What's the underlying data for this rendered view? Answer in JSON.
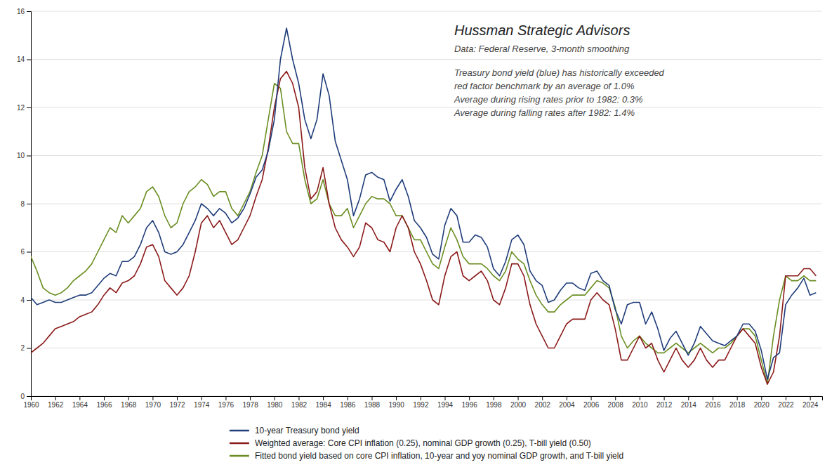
{
  "chart_data": {
    "type": "line",
    "title": "Hussman Strategic Advisors",
    "subtitle": "Data: Federal Reserve, 3-month smoothing",
    "annotations": [
      "Treasury bond yield (blue) has historically exceeded",
      "red factor benchmark by an average of 1.0%",
      "Average during rising rates prior to 1982: 0.3%",
      "Average during falling rates after 1982: 1.4%"
    ],
    "x": [
      1960.0,
      1960.5,
      1961.0,
      1961.5,
      1962.0,
      1962.5,
      1963.0,
      1963.5,
      1964.0,
      1964.5,
      1965.0,
      1965.5,
      1966.0,
      1966.5,
      1967.0,
      1967.5,
      1968.0,
      1968.5,
      1969.0,
      1969.5,
      1970.0,
      1970.5,
      1971.0,
      1971.5,
      1972.0,
      1972.5,
      1973.0,
      1973.5,
      1974.0,
      1974.5,
      1975.0,
      1975.5,
      1976.0,
      1976.5,
      1977.0,
      1977.5,
      1978.0,
      1978.5,
      1979.0,
      1979.5,
      1980.0,
      1980.5,
      1981.0,
      1981.5,
      1982.0,
      1982.5,
      1983.0,
      1983.5,
      1984.0,
      1984.5,
      1985.0,
      1985.5,
      1986.0,
      1986.5,
      1987.0,
      1987.5,
      1988.0,
      1988.5,
      1989.0,
      1989.5,
      1990.0,
      1990.5,
      1991.0,
      1991.5,
      1992.0,
      1992.5,
      1993.0,
      1993.5,
      1994.0,
      1994.5,
      1995.0,
      1995.5,
      1996.0,
      1996.5,
      1997.0,
      1997.5,
      1998.0,
      1998.5,
      1999.0,
      1999.5,
      2000.0,
      2000.5,
      2001.0,
      2001.5,
      2002.0,
      2002.5,
      2003.0,
      2003.5,
      2004.0,
      2004.5,
      2005.0,
      2005.5,
      2006.0,
      2006.5,
      2007.0,
      2007.5,
      2008.0,
      2008.5,
      2009.0,
      2009.5,
      2010.0,
      2010.5,
      2011.0,
      2011.5,
      2012.0,
      2012.5,
      2013.0,
      2013.5,
      2014.0,
      2014.5,
      2015.0,
      2015.5,
      2016.0,
      2016.5,
      2017.0,
      2017.5,
      2018.0,
      2018.5,
      2019.0,
      2019.5,
      2020.0,
      2020.5,
      2021.0,
      2021.5,
      2022.0,
      2022.5,
      2023.0,
      2023.5,
      2024.0,
      2024.5
    ],
    "series": [
      {
        "name": "10-year Treasury bond yield",
        "color": "#1f3d7a",
        "values": [
          4.1,
          3.8,
          3.9,
          4.0,
          3.9,
          3.9,
          4.0,
          4.1,
          4.2,
          4.2,
          4.3,
          4.6,
          4.9,
          5.1,
          5.0,
          5.6,
          5.6,
          5.8,
          6.3,
          7.0,
          7.3,
          6.8,
          6.0,
          5.9,
          6.0,
          6.3,
          6.8,
          7.3,
          8.0,
          7.8,
          7.5,
          7.8,
          7.6,
          7.2,
          7.4,
          7.8,
          8.4,
          9.1,
          9.4,
          10.2,
          11.5,
          14.0,
          15.3,
          14.0,
          13.0,
          11.5,
          10.7,
          11.5,
          13.4,
          12.5,
          10.6,
          9.8,
          9.0,
          7.5,
          8.2,
          9.2,
          9.3,
          9.1,
          9.0,
          8.1,
          8.6,
          9.0,
          8.3,
          7.3,
          7.0,
          6.6,
          5.9,
          5.7,
          7.1,
          7.8,
          7.5,
          6.4,
          6.4,
          6.7,
          6.6,
          6.2,
          5.3,
          5.0,
          5.6,
          6.5,
          6.7,
          6.3,
          5.2,
          4.8,
          4.6,
          3.9,
          4.0,
          4.4,
          4.7,
          4.7,
          4.5,
          4.4,
          5.1,
          5.2,
          4.8,
          4.6,
          3.6,
          3.0,
          3.8,
          3.9,
          3.9,
          3.0,
          3.5,
          2.8,
          1.9,
          2.4,
          2.7,
          2.2,
          1.7,
          2.2,
          2.9,
          2.6,
          2.3,
          2.2,
          2.1,
          2.3,
          2.5,
          3.0,
          3.0,
          2.7,
          1.9,
          0.7,
          1.6,
          1.8,
          3.8,
          4.2,
          4.5,
          4.9,
          4.2,
          4.3
        ]
      },
      {
        "name": "Weighted average: Core CPI inflation (0.25), nominal GDP growth (0.25), T-bill yield (0.50)",
        "color": "#8b1a1a",
        "values": [
          1.8,
          2.0,
          2.2,
          2.5,
          2.8,
          2.9,
          3.0,
          3.1,
          3.3,
          3.4,
          3.5,
          3.8,
          4.2,
          4.5,
          4.3,
          4.7,
          4.8,
          5.0,
          5.5,
          6.2,
          6.3,
          5.8,
          4.8,
          4.5,
          4.2,
          4.5,
          5.0,
          6.0,
          7.2,
          7.5,
          7.0,
          7.3,
          6.8,
          6.3,
          6.5,
          7.0,
          7.5,
          8.3,
          9.0,
          10.3,
          12.0,
          13.2,
          13.5,
          13.0,
          12.0,
          9.5,
          8.2,
          8.5,
          9.5,
          8.0,
          7.0,
          6.5,
          6.2,
          5.8,
          6.2,
          7.2,
          7.0,
          6.5,
          6.4,
          6.0,
          7.0,
          7.5,
          7.0,
          6.0,
          5.5,
          4.8,
          4.0,
          3.8,
          5.0,
          5.8,
          6.0,
          5.0,
          4.8,
          5.0,
          5.2,
          4.8,
          4.0,
          3.8,
          4.5,
          5.5,
          5.5,
          5.0,
          3.8,
          3.0,
          2.5,
          2.0,
          2.0,
          2.5,
          3.0,
          3.2,
          3.2,
          3.2,
          4.0,
          4.3,
          4.0,
          3.8,
          2.8,
          1.5,
          1.5,
          2.0,
          2.5,
          2.0,
          2.2,
          1.5,
          1.0,
          1.5,
          2.0,
          1.5,
          1.2,
          1.5,
          2.0,
          1.5,
          1.2,
          1.5,
          1.5,
          2.0,
          2.5,
          2.8,
          2.5,
          2.2,
          1.2,
          0.5,
          1.0,
          2.5,
          5.0,
          5.0,
          5.0,
          5.3,
          5.3,
          5.0
        ]
      },
      {
        "name": "Fitted bond yield based on core CPI inflation, 10-year and yoy nominal GDP growth, and T-bill yield",
        "color": "#6b8e23",
        "values": [
          5.8,
          5.2,
          4.5,
          4.3,
          4.2,
          4.3,
          4.5,
          4.8,
          5.0,
          5.2,
          5.5,
          6.0,
          6.5,
          7.0,
          6.8,
          7.5,
          7.2,
          7.5,
          7.8,
          8.5,
          8.7,
          8.3,
          7.5,
          7.0,
          7.2,
          8.0,
          8.5,
          8.7,
          9.0,
          8.8,
          8.3,
          8.5,
          8.5,
          7.8,
          7.5,
          8.0,
          8.5,
          9.3,
          10.0,
          11.5,
          13.0,
          12.8,
          11.0,
          10.5,
          10.5,
          9.0,
          8.0,
          8.2,
          9.0,
          8.0,
          7.5,
          7.5,
          7.8,
          7.0,
          7.5,
          8.0,
          8.3,
          8.2,
          8.2,
          8.0,
          7.5,
          7.5,
          7.0,
          6.5,
          6.5,
          6.0,
          5.5,
          5.3,
          6.2,
          7.0,
          6.5,
          5.8,
          5.5,
          5.5,
          5.5,
          5.3,
          5.0,
          4.8,
          5.2,
          6.0,
          5.7,
          5.5,
          4.8,
          4.2,
          3.8,
          3.5,
          3.5,
          3.8,
          4.0,
          4.2,
          4.2,
          4.2,
          4.5,
          4.8,
          4.7,
          4.5,
          3.7,
          2.5,
          2.0,
          2.3,
          2.5,
          2.2,
          2.0,
          1.8,
          1.8,
          2.0,
          2.2,
          2.0,
          1.8,
          2.0,
          2.2,
          2.0,
          1.8,
          2.0,
          2.0,
          2.2,
          2.5,
          2.8,
          2.8,
          2.5,
          1.5,
          0.5,
          2.5,
          4.0,
          5.0,
          4.8,
          4.8,
          5.0,
          4.8,
          4.8
        ]
      }
    ],
    "xlim": [
      1960,
      2025
    ],
    "ylim": [
      0,
      16
    ],
    "xticks": [
      1960,
      1962,
      1964,
      1966,
      1968,
      1970,
      1972,
      1974,
      1976,
      1978,
      1980,
      1982,
      1984,
      1986,
      1988,
      1990,
      1992,
      1994,
      1996,
      1998,
      2000,
      2002,
      2004,
      2006,
      2008,
      2010,
      2012,
      2014,
      2016,
      2018,
      2020,
      2022,
      2024
    ],
    "yticks": [
      0,
      2,
      4,
      6,
      8,
      10,
      12,
      14,
      16
    ],
    "grid": "y",
    "legend": "bottom"
  }
}
